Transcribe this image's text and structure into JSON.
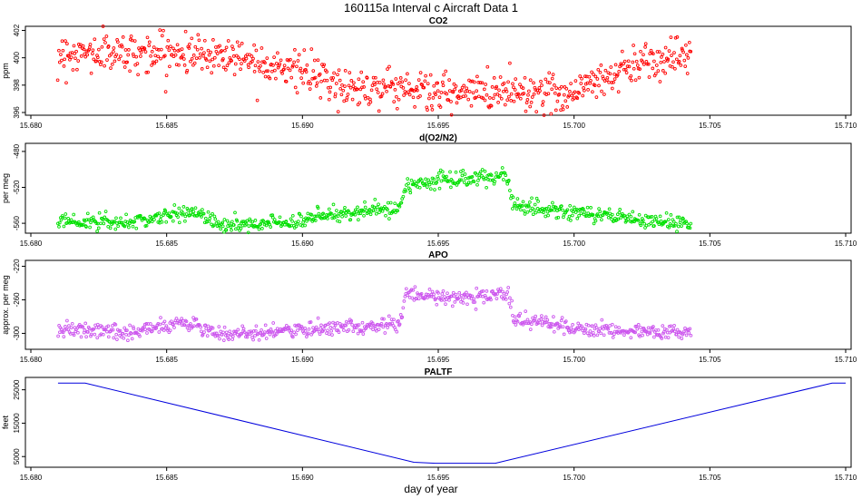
{
  "figure": {
    "title": "160115a   Interval c Aircraft Data 1",
    "xlabel": "day of year"
  },
  "chart_data": [
    {
      "type": "scatter",
      "title": "CO2",
      "ylabel": "ppm",
      "color": "#ff0000",
      "xlim": [
        15.68,
        15.71
      ],
      "ylim": [
        395.8,
        402.3
      ],
      "x_ticks": [
        "15.680",
        "15.685",
        "15.690",
        "15.695",
        "15.700",
        "15.705",
        "15.710"
      ],
      "y_ticks": [
        "396",
        "398",
        "400",
        "402"
      ],
      "x_range": [
        15.681,
        15.7043
      ],
      "trend": [
        [
          15.681,
          400.3
        ],
        [
          15.684,
          400.4
        ],
        [
          15.6875,
          400.2
        ],
        [
          15.6895,
          399.3
        ],
        [
          15.6915,
          397.8
        ],
        [
          15.6935,
          397.9
        ],
        [
          15.6955,
          397.3
        ],
        [
          15.6975,
          397.7
        ],
        [
          15.6995,
          397.3
        ],
        [
          15.701,
          398.4
        ],
        [
          15.7025,
          399.8
        ],
        [
          15.7043,
          400.2
        ]
      ],
      "noise": 0.7
    },
    {
      "type": "scatter",
      "title": "d(O2/N2)",
      "ylabel": "per meg",
      "color": "#00e000",
      "xlim": [
        15.68,
        15.71
      ],
      "ylim": [
        -571,
        -471
      ],
      "x_ticks": [
        "15.680",
        "15.685",
        "15.690",
        "15.695",
        "15.700",
        "15.705",
        "15.710"
      ],
      "y_ticks": [
        "-560",
        "-520",
        "-480"
      ],
      "x_range": [
        15.681,
        15.7043
      ],
      "trend": [
        [
          15.681,
          -556
        ],
        [
          15.6835,
          -560
        ],
        [
          15.685,
          -552
        ],
        [
          15.686,
          -548
        ],
        [
          15.687,
          -562
        ],
        [
          15.6885,
          -561
        ],
        [
          15.69,
          -556
        ],
        [
          15.6915,
          -549
        ],
        [
          15.6936,
          -543
        ],
        [
          15.6938,
          -518
        ],
        [
          15.6955,
          -512
        ],
        [
          15.6975,
          -507
        ],
        [
          15.6978,
          -541
        ],
        [
          15.699,
          -545
        ],
        [
          15.7015,
          -552
        ],
        [
          15.7025,
          -558
        ],
        [
          15.7043,
          -560
        ]
      ],
      "noise": 4.5
    },
    {
      "type": "scatter",
      "title": "APO",
      "ylabel": "approx. per meg",
      "color": "#cc55ee",
      "xlim": [
        15.68,
        15.71
      ],
      "ylim": [
        -319,
        -213
      ],
      "x_ticks": [
        "15.680",
        "15.685",
        "15.690",
        "15.695",
        "15.700",
        "15.705",
        "15.710"
      ],
      "y_ticks": [
        "-300",
        "-260",
        "-220"
      ],
      "x_range": [
        15.681,
        15.7043
      ],
      "trend": [
        [
          15.681,
          -296
        ],
        [
          15.6835,
          -298
        ],
        [
          15.6855,
          -288
        ],
        [
          15.687,
          -300
        ],
        [
          15.6885,
          -300
        ],
        [
          15.691,
          -294
        ],
        [
          15.6936,
          -290
        ],
        [
          15.6938,
          -255
        ],
        [
          15.6955,
          -258
        ],
        [
          15.6976,
          -253
        ],
        [
          15.6978,
          -285
        ],
        [
          15.7,
          -292
        ],
        [
          15.7015,
          -296
        ],
        [
          15.7043,
          -300
        ]
      ],
      "noise": 4.5
    },
    {
      "type": "line",
      "title": "PALTF",
      "ylabel": "feet",
      "color": "#0000dd",
      "xlim": [
        15.68,
        15.71
      ],
      "ylim": [
        1800,
        28700
      ],
      "x_ticks": [
        "15.680",
        "15.685",
        "15.690",
        "15.695",
        "15.700",
        "15.705",
        "15.710"
      ],
      "y_ticks": [
        "5000",
        "15000",
        "25000"
      ],
      "x": [
        15.681,
        15.682,
        15.6941,
        15.6949,
        15.6971,
        15.7095,
        15.71
      ],
      "y": [
        27000,
        27000,
        3300,
        3000,
        3000,
        27000,
        27000
      ]
    }
  ]
}
